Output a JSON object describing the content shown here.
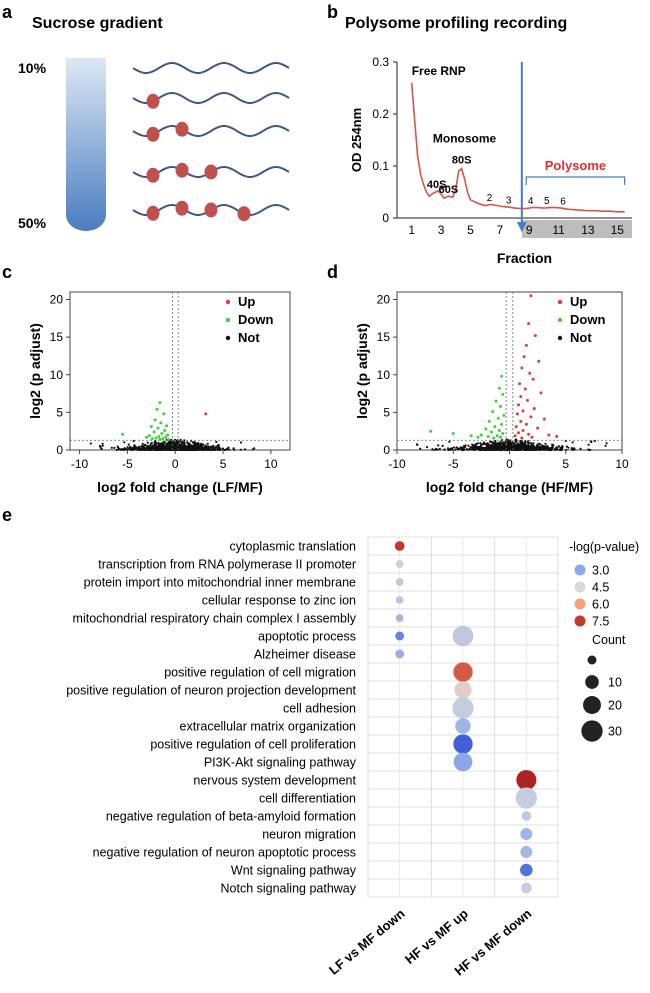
{
  "panels": {
    "a": {
      "letter": "a",
      "title": "Sucrose gradient",
      "top_label": "10%",
      "bottom_label": "50%",
      "ribosome_counts": [
        0,
        1,
        2,
        3,
        4
      ],
      "colors": {
        "wave": "#3d5a80",
        "ribosome": "#c0504d",
        "tube_top": "#dde8f5",
        "tube_bottom": "#4a7cc0"
      }
    },
    "b": {
      "letter": "b",
      "title": "Polysome profiling recording",
      "chart_data": {
        "type": "line",
        "xlabel": "Fraction",
        "ylabel": "OD 254nm",
        "x_ticks": [
          "1",
          "3",
          "5",
          "7",
          "9",
          "11",
          "13",
          "15"
        ],
        "y_ticks": [
          "0",
          "0.1",
          "0.2",
          "0.3"
        ],
        "xlim": [
          0,
          16
        ],
        "ylim": [
          0,
          0.3
        ],
        "shaded_from": 8.5,
        "divider_x": 8.5,
        "series": [
          {
            "x": [
              1.0,
              1.2,
              1.4,
              1.6,
              1.8,
              2.0,
              2.2,
              2.5,
              2.8,
              3.0,
              3.2,
              3.5,
              3.8,
              4.0,
              4.2,
              4.4,
              4.6,
              4.8,
              5.0,
              5.5,
              6.0,
              6.4,
              6.8,
              7.2,
              7.6,
              8.0,
              8.4,
              8.8,
              9.2,
              9.6,
              10.0,
              10.4,
              10.8,
              11.2,
              11.6,
              12.0,
              12.5,
              13.0,
              13.5,
              14.0,
              14.5,
              15.0,
              15.5
            ],
            "y": [
              0.26,
              0.19,
              0.12,
              0.085,
              0.065,
              0.05,
              0.042,
              0.048,
              0.052,
              0.046,
              0.038,
              0.042,
              0.04,
              0.055,
              0.09,
              0.095,
              0.075,
              0.05,
              0.035,
              0.028,
              0.024,
              0.026,
              0.024,
              0.022,
              0.021,
              0.019,
              0.018,
              0.018,
              0.02,
              0.02,
              0.019,
              0.02,
              0.02,
              0.019,
              0.017,
              0.016,
              0.015,
              0.014,
              0.014,
              0.013,
              0.013,
              0.012,
              0.012
            ],
            "color": "#d9534f"
          }
        ],
        "annotations": [
          {
            "text": "Free RNP",
            "x": 1.0,
            "y": 0.275
          },
          {
            "text": "40S",
            "x": 2.7,
            "y": 0.058
          },
          {
            "text": "60S",
            "x": 3.5,
            "y": 0.048
          },
          {
            "text": "Monosome",
            "x": 4.6,
            "y": 0.145
          },
          {
            "text": "80S",
            "x": 4.4,
            "y": 0.105
          },
          {
            "text": "2",
            "x": 6.3,
            "y": 0.033
          },
          {
            "text": "3",
            "x": 7.6,
            "y": 0.028
          },
          {
            "text": "4",
            "x": 9.1,
            "y": 0.027
          },
          {
            "text": "5",
            "x": 10.2,
            "y": 0.027
          },
          {
            "text": "6",
            "x": 11.3,
            "y": 0.026
          }
        ],
        "polysome_label": "Polysome"
      }
    },
    "c": {
      "letter": "c",
      "chart_data": {
        "type": "scatter",
        "xlabel": "log2 fold change (LF/MF)",
        "ylabel": "log2 (p adjust)",
        "xlim": [
          -11,
          12
        ],
        "ylim": [
          0,
          21
        ],
        "x_ticks": [
          -10,
          -5,
          0,
          5,
          10
        ],
        "y_ticks": [
          0,
          5,
          10,
          15,
          20
        ],
        "threshold_y": 1.3,
        "vlines": [
          -0.3,
          0.3
        ],
        "legend": [
          {
            "name": "Up",
            "color": "#e03b3b"
          },
          {
            "name": "Down",
            "color": "#33d633"
          },
          {
            "name": "Not",
            "color": "#111111"
          }
        ],
        "up_points": [
          [
            3.2,
            4.8
          ]
        ],
        "down_points": [
          [
            -1.6,
            6.3
          ],
          [
            -1.9,
            5.4
          ],
          [
            -1.2,
            4.8
          ],
          [
            -2.1,
            4.0
          ],
          [
            -1.5,
            3.6
          ],
          [
            -0.9,
            3.2
          ],
          [
            -2.5,
            3.1
          ],
          [
            -1.8,
            2.9
          ],
          [
            -1.1,
            2.6
          ],
          [
            -2.2,
            2.4
          ],
          [
            -1.4,
            2.2
          ],
          [
            -0.8,
            2.0
          ],
          [
            -2.7,
            1.9
          ],
          [
            -1.7,
            1.8
          ],
          [
            -1.0,
            1.7
          ],
          [
            -2.0,
            1.6
          ],
          [
            -1.3,
            1.5
          ],
          [
            -0.7,
            1.4
          ],
          [
            -1.6,
            1.4
          ],
          [
            -2.4,
            1.5
          ],
          [
            -3.0,
            1.7
          ],
          [
            -5.5,
            2.1
          ]
        ]
      }
    },
    "d": {
      "letter": "d",
      "chart_data": {
        "type": "scatter",
        "xlabel": "log2 fold change (HF/MF)",
        "ylabel": "log2 (p adjust)",
        "xlim": [
          -10,
          10
        ],
        "ylim": [
          0,
          21
        ],
        "x_ticks": [
          -10,
          -5,
          0,
          5,
          10
        ],
        "y_ticks": [
          0,
          5,
          10,
          15,
          20
        ],
        "threshold_y": 1.3,
        "vlines": [
          -0.3,
          0.3
        ],
        "legend": [
          {
            "name": "Up",
            "color": "#e03b3b"
          },
          {
            "name": "Down",
            "color": "#33d633"
          },
          {
            "name": "Not",
            "color": "#111111"
          }
        ],
        "up_points": [
          [
            1.9,
            20.5
          ],
          [
            1.7,
            16.8
          ],
          [
            2.3,
            15.2
          ],
          [
            1.5,
            13.9
          ],
          [
            1.3,
            12.4
          ],
          [
            2.6,
            11.8
          ],
          [
            1.1,
            10.9
          ],
          [
            1.8,
            10.2
          ],
          [
            2.1,
            9.4
          ],
          [
            0.9,
            8.8
          ],
          [
            1.4,
            8.1
          ],
          [
            2.8,
            7.6
          ],
          [
            1.0,
            7.1
          ],
          [
            1.6,
            6.6
          ],
          [
            0.8,
            6.0
          ],
          [
            2.2,
            5.5
          ],
          [
            1.2,
            5.2
          ],
          [
            0.7,
            4.8
          ],
          [
            1.9,
            4.4
          ],
          [
            3.1,
            4.1
          ],
          [
            1.0,
            3.8
          ],
          [
            1.5,
            3.4
          ],
          [
            0.6,
            3.1
          ],
          [
            2.5,
            2.9
          ],
          [
            1.2,
            2.6
          ],
          [
            0.8,
            2.3
          ],
          [
            1.7,
            2.1
          ],
          [
            0.5,
            1.9
          ],
          [
            2.0,
            1.7
          ],
          [
            1.1,
            1.6
          ],
          [
            3.5,
            2.0
          ],
          [
            4.2,
            1.8
          ]
        ],
        "down_points": [
          [
            -0.7,
            9.8
          ],
          [
            -0.9,
            8.2
          ],
          [
            -0.6,
            7.4
          ],
          [
            -1.2,
            6.5
          ],
          [
            -0.8,
            5.8
          ],
          [
            -1.5,
            5.1
          ],
          [
            -0.5,
            4.6
          ],
          [
            -1.0,
            4.2
          ],
          [
            -1.8,
            3.8
          ],
          [
            -0.7,
            3.4
          ],
          [
            -1.3,
            3.1
          ],
          [
            -2.1,
            2.8
          ],
          [
            -0.9,
            2.6
          ],
          [
            -1.6,
            2.4
          ],
          [
            -0.6,
            2.2
          ],
          [
            -2.5,
            2.0
          ],
          [
            -1.1,
            1.9
          ],
          [
            -1.9,
            1.8
          ],
          [
            -0.8,
            1.7
          ],
          [
            -1.4,
            1.6
          ],
          [
            -2.8,
            1.7
          ],
          [
            -3.4,
            1.9
          ],
          [
            -5.0,
            2.2
          ],
          [
            -7.0,
            2.5
          ]
        ]
      }
    },
    "e": {
      "letter": "e",
      "chart_data": {
        "type": "scatter",
        "title": "",
        "categories": [
          "cytoplasmic translation",
          "transcription from RNA polymerase II promoter",
          "protein import into mitochondrial inner membrane",
          "cellular response to zinc ion",
          "mitochondrial respiratory chain complex I assembly",
          "apoptotic process",
          "Alzheimer disease",
          "positive regulation of cell migration",
          "positive regulation of neuron projection development",
          "cell adhesion",
          "extracellular matrix organization",
          "positive regulation of cell proliferation",
          "PI3K-Akt signaling pathway",
          "nervous system development",
          "cell differentiation",
          "negative regulation of beta-amyloid formation",
          "neuron migration",
          "negative regulation of neuron apoptotic process",
          "Wnt signaling pathway",
          "Notch signaling pathway"
        ],
        "groups": [
          "LF vs MF down",
          "HF vs MF up",
          "HF vs MF down"
        ],
        "points": [
          {
            "term": 0,
            "group": 0,
            "neglogp": 7.5,
            "count": 4
          },
          {
            "term": 1,
            "group": 0,
            "neglogp": 4.2,
            "count": 2
          },
          {
            "term": 2,
            "group": 0,
            "neglogp": 4.0,
            "count": 2
          },
          {
            "term": 3,
            "group": 0,
            "neglogp": 3.9,
            "count": 2
          },
          {
            "term": 4,
            "group": 0,
            "neglogp": 3.5,
            "count": 2
          },
          {
            "term": 5,
            "group": 0,
            "neglogp": 2.8,
            "count": 3
          },
          {
            "term": 6,
            "group": 0,
            "neglogp": 3.2,
            "count": 3
          },
          {
            "term": 5,
            "group": 1,
            "neglogp": 4.0,
            "count": 28
          },
          {
            "term": 7,
            "group": 1,
            "neglogp": 7.0,
            "count": 24
          },
          {
            "term": 8,
            "group": 1,
            "neglogp": 4.8,
            "count": 18
          },
          {
            "term": 9,
            "group": 1,
            "neglogp": 4.1,
            "count": 30
          },
          {
            "term": 10,
            "group": 1,
            "neglogp": 3.4,
            "count": 14
          },
          {
            "term": 11,
            "group": 1,
            "neglogp": 2.6,
            "count": 24
          },
          {
            "term": 12,
            "group": 1,
            "neglogp": 3.0,
            "count": 22
          },
          {
            "term": 13,
            "group": 2,
            "neglogp": 7.8,
            "count": 26
          },
          {
            "term": 14,
            "group": 2,
            "neglogp": 4.1,
            "count": 30
          },
          {
            "term": 15,
            "group": 2,
            "neglogp": 4.0,
            "count": 4
          },
          {
            "term": 16,
            "group": 2,
            "neglogp": 3.4,
            "count": 7
          },
          {
            "term": 17,
            "group": 2,
            "neglogp": 3.5,
            "count": 7
          },
          {
            "term": 18,
            "group": 2,
            "neglogp": 2.7,
            "count": 8
          },
          {
            "term": 19,
            "group": 2,
            "neglogp": 4.1,
            "count": 5
          }
        ],
        "color_legend": {
          "title": "-log(p-value)",
          "values": [
            "3.0",
            "4.5",
            "6.0",
            "7.5"
          ],
          "colors": [
            "#8aa7ec",
            "#d9d9d9",
            "#f1a27a",
            "#c0392b"
          ]
        },
        "size_legend": {
          "title": "Count",
          "values": [
            "10",
            "20",
            "30"
          ],
          "min_count": 3
        }
      }
    }
  }
}
